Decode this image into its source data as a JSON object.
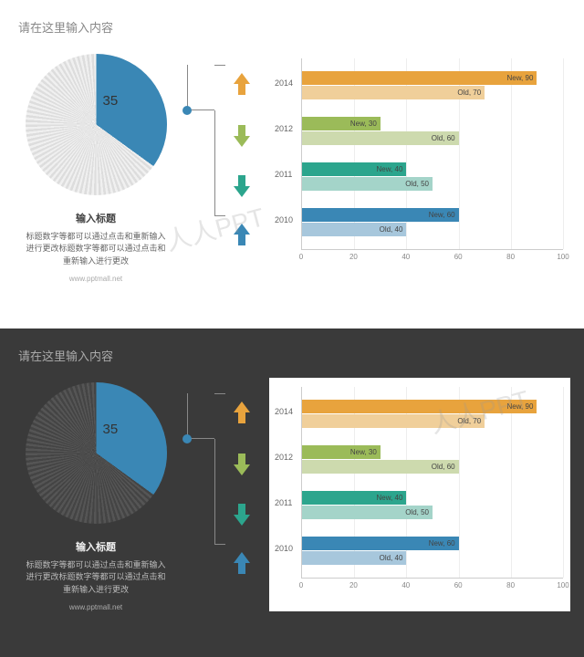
{
  "header_text": "请在这里输入内容",
  "pie": {
    "value": 35,
    "slice_color": "#3a87b5",
    "label": "35",
    "caption_title": "输入标题",
    "caption_body": "标题数字等都可以通过点击和重新输入\n进行更改标题数字等都可以通过点击和\n重新输入进行更改"
  },
  "footer_url": "www.pptmall.net",
  "arrows": [
    {
      "dir": "up",
      "color": "#e8a33d"
    },
    {
      "dir": "down",
      "color": "#9bbb59"
    },
    {
      "dir": "down",
      "color": "#2ca58d"
    },
    {
      "dir": "up",
      "color": "#3a87b5"
    }
  ],
  "bar_chart": {
    "xmax": 100,
    "xtick_step": 20,
    "bg": "#ffffff",
    "grid_color": "#eeeeee",
    "years": [
      {
        "year": "2014",
        "new_val": 90,
        "old_val": 70,
        "new_color": "#e8a33d",
        "old_color": "#f0cf9a",
        "new_label": "New, 90",
        "old_label": "Old, 70"
      },
      {
        "year": "2012",
        "new_val": 30,
        "old_val": 60,
        "new_color": "#9bbb59",
        "old_color": "#cddaae",
        "new_label": "New, 30",
        "old_label": "Old, 60"
      },
      {
        "year": "2011",
        "new_val": 40,
        "old_val": 50,
        "new_color": "#2ca58d",
        "old_color": "#a4d4c9",
        "new_label": "New, 40",
        "old_label": "Old, 50"
      },
      {
        "year": "2010",
        "new_val": 60,
        "old_val": 40,
        "new_color": "#3a87b5",
        "old_color": "#a7c7dc",
        "new_label": "New, 60",
        "old_label": "Old, 40"
      }
    ]
  },
  "watermark": "人人PPT",
  "slides": [
    {
      "theme": "light"
    },
    {
      "theme": "dark"
    }
  ]
}
